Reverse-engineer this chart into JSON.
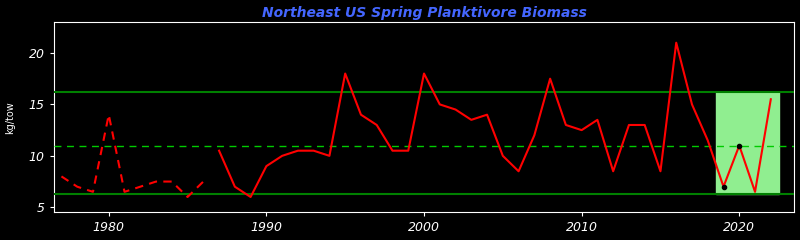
{
  "years": [
    1977,
    1978,
    1979,
    1980,
    1981,
    1982,
    1983,
    1984,
    1985,
    1986,
    1987,
    1988,
    1989,
    1990,
    1991,
    1992,
    1993,
    1994,
    1995,
    1996,
    1997,
    1998,
    1999,
    2000,
    2001,
    2002,
    2003,
    2004,
    2005,
    2006,
    2007,
    2008,
    2009,
    2010,
    2011,
    2012,
    2013,
    2014,
    2015,
    2016,
    2017,
    2018,
    2019,
    2020,
    2021,
    2022
  ],
  "values": [
    8.0,
    7.0,
    6.5,
    14.0,
    6.5,
    7.0,
    7.5,
    7.5,
    6.0,
    7.5,
    10.5,
    7.0,
    6.0,
    9.0,
    10.0,
    10.5,
    10.5,
    10.0,
    18.0,
    14.0,
    13.0,
    10.5,
    10.5,
    18.0,
    15.0,
    14.5,
    13.5,
    14.0,
    10.0,
    8.5,
    12.0,
    17.5,
    13.0,
    12.5,
    13.5,
    8.5,
    13.0,
    13.0,
    8.5,
    21.0,
    15.0,
    11.5,
    7.0,
    11.0,
    6.5,
    15.5
  ],
  "dashed_cutoff": 1986,
  "solid_start": 1987,
  "highlight_start": 2019,
  "highlight_end": 2022,
  "upper_threshold": 16.2,
  "lower_threshold": 6.3,
  "mean_line": 11.0,
  "ylim": [
    4.5,
    23
  ],
  "yticks": [
    5,
    10,
    15,
    20
  ],
  "xlim": [
    1976.5,
    2023.5
  ],
  "xticks": [
    1980,
    1990,
    2000,
    2010,
    2020
  ],
  "line_color": "#ff0000",
  "green_line_color": "#008000",
  "dashed_mean_color": "#00cc00",
  "highlight_color": "#90ee90",
  "bg_color": "#000000",
  "text_color": "#ffffff",
  "title_color": "#4466ff",
  "ylabel": "kg/tow\n"
}
